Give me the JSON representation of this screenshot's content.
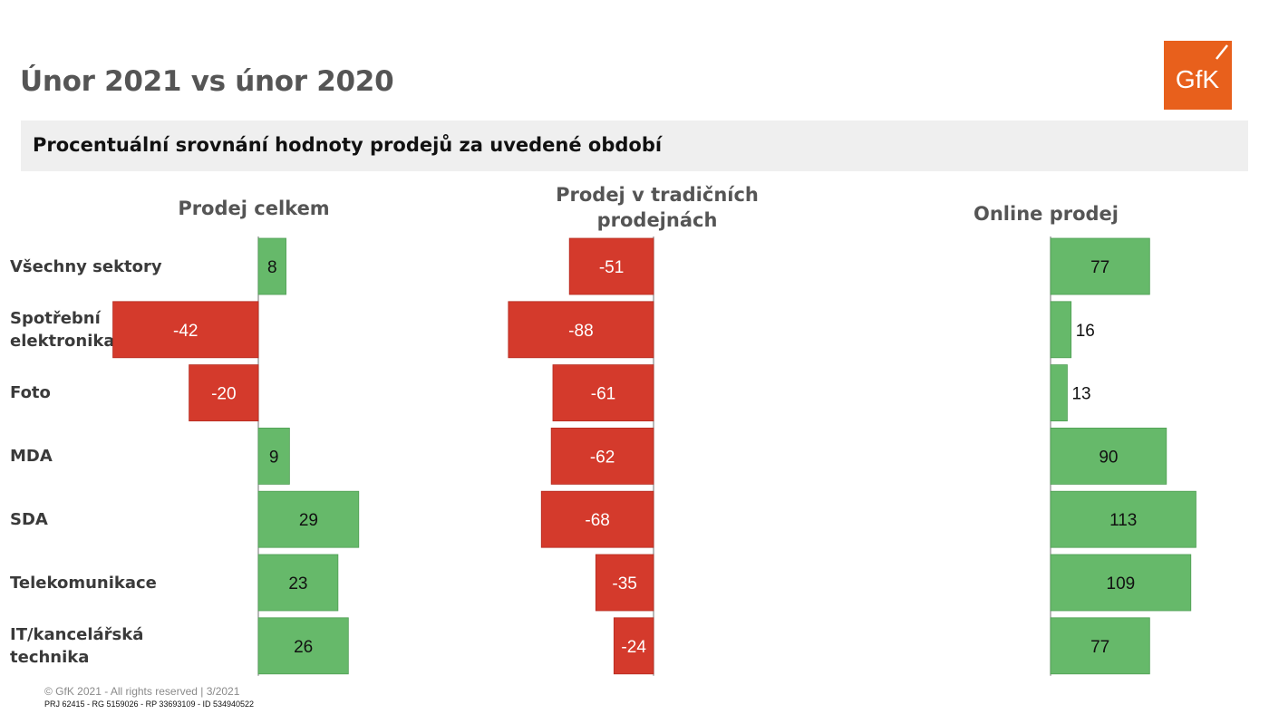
{
  "title": "Únor 2021 vs únor 2020",
  "subtitle": "Procentuální srovnání hodnoty prodejů za uvedené období",
  "logo": {
    "text": "GfK",
    "color": "#e8601c",
    "icon": "gfk-logo"
  },
  "colors": {
    "positive": "#66b96a",
    "negative": "#d43a2c",
    "axis": "#888888"
  },
  "chart_data": {
    "type": "bar",
    "orientation": "horizontal",
    "categories": [
      "Všechny sektory",
      "Spotřební elektronika",
      "Foto",
      "MDA",
      "SDA",
      "Telekomunikace",
      "IT/kancelářská technika"
    ],
    "category_labels": [
      [
        "Všechny sektory"
      ],
      [
        "Spotřební",
        "elektronika"
      ],
      [
        "Foto"
      ],
      [
        "MDA"
      ],
      [
        "SDA"
      ],
      [
        "Telekomunikace"
      ],
      [
        "IT/kancelářská",
        "technika"
      ]
    ],
    "series": [
      {
        "name": "Prodej celkem",
        "title_lines": [
          "Prodej celkem"
        ],
        "values": [
          8,
          -42,
          -20,
          9,
          29,
          23,
          26
        ]
      },
      {
        "name": "Prodej v tradičních prodejnách",
        "title_lines": [
          "Prodej v tradičních",
          "prodejnách"
        ],
        "values": [
          -51,
          -88,
          -61,
          -62,
          -68,
          -35,
          -24
        ]
      },
      {
        "name": "Online prodej",
        "title_lines": [
          "Online prodej"
        ],
        "values": [
          77,
          16,
          13,
          90,
          113,
          109,
          77
        ]
      }
    ],
    "data_labels": true,
    "grid": false,
    "legend": "none"
  },
  "footer": {
    "copyright": "© GfK 2021 - All rights reserved | 3/2021",
    "ids": "PRJ 62415 - RG 5159026 - RP 33693109 - ID 534940522"
  }
}
